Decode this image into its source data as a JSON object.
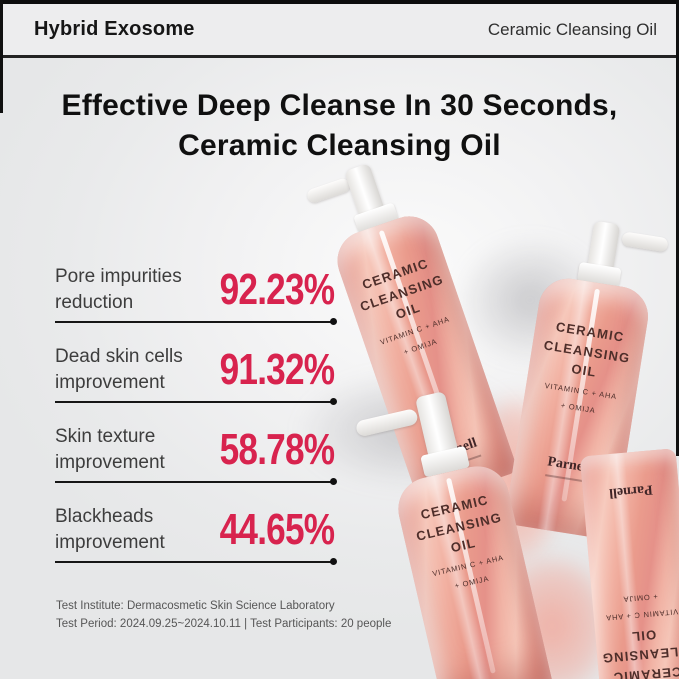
{
  "header": {
    "brand_title": "Hybrid Exosome",
    "product_name": "Ceramic Cleansing Oil"
  },
  "title": {
    "line1": "Effective Deep Cleanse In 30 Seconds,",
    "line2": "Ceramic Cleansing Oil"
  },
  "stats": [
    {
      "label_line1": "Pore impurities",
      "label_line2": "reduction",
      "value": "92.23%"
    },
    {
      "label_line1": "Dead skin cells",
      "label_line2": "improvement",
      "value": "91.32%"
    },
    {
      "label_line1": "Skin texture",
      "label_line2": "improvement",
      "value": "58.78%"
    },
    {
      "label_line1": "Blackheads",
      "label_line2": "improvement",
      "value": "44.65%"
    }
  ],
  "footnote": {
    "line1": "Test Institute: Dermacosmetic Skin Science Laboratory",
    "line2": "Test Period: 2024.09.25~2024.10.11 | Test Participants: 20 people"
  },
  "product_label": {
    "name_line1": "CERAMIC",
    "name_line2": "CLEANSING OIL",
    "sub_line1": "VITAMIN C + AHA",
    "sub_line2": "+ OMIJA",
    "brand": "Parnell"
  },
  "colors": {
    "accent_percent": "#d8234e",
    "divider": "#161616",
    "header_bg": "#ededee",
    "background": "#e9eaeb",
    "bottle_pink": "#eda396",
    "frame_edge": "#101010"
  }
}
